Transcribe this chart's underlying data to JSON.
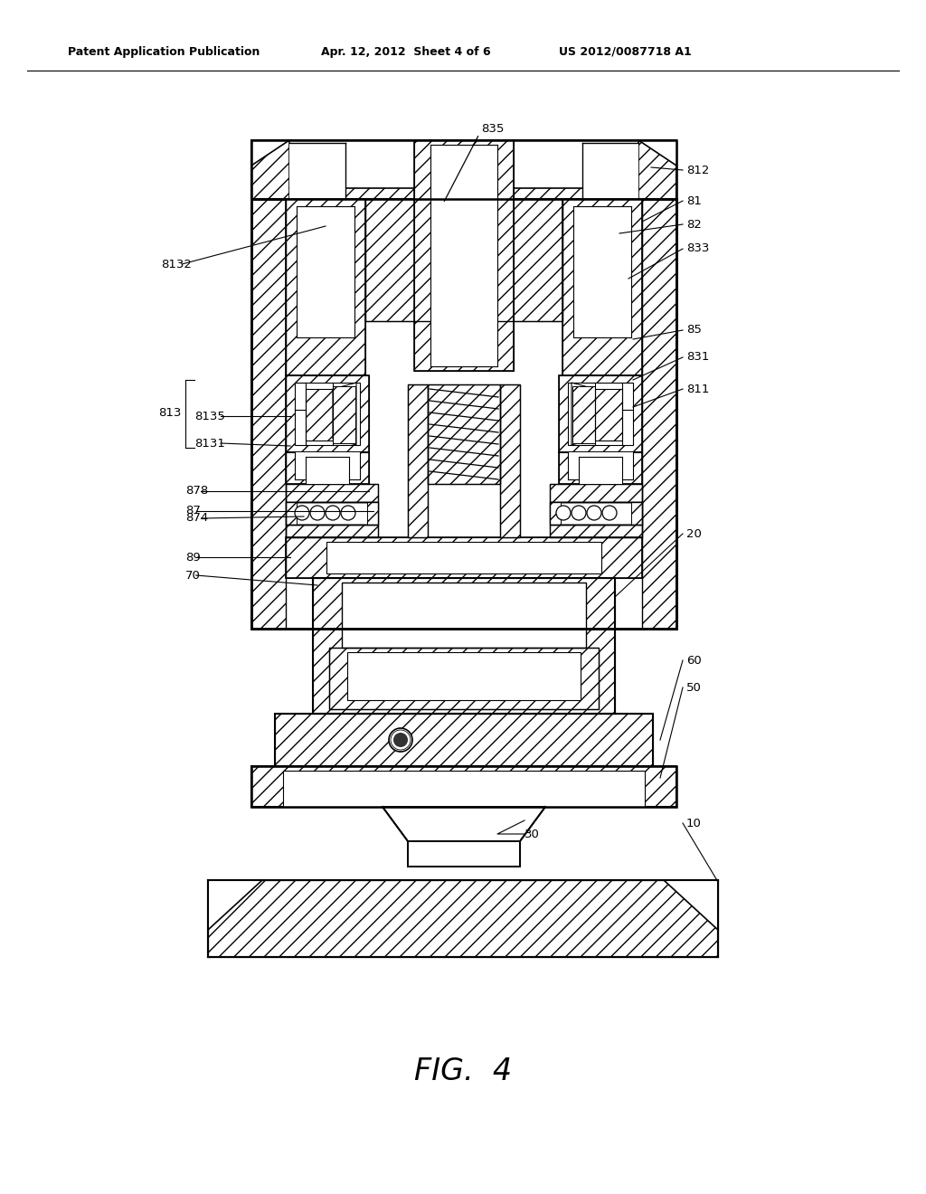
{
  "bg_color": "#ffffff",
  "header_left": "Patent Application Publication",
  "header_mid": "Apr. 12, 2012  Sheet 4 of 6",
  "header_right": "US 2012/0087718 A1",
  "fig_label": "FIG.  4"
}
